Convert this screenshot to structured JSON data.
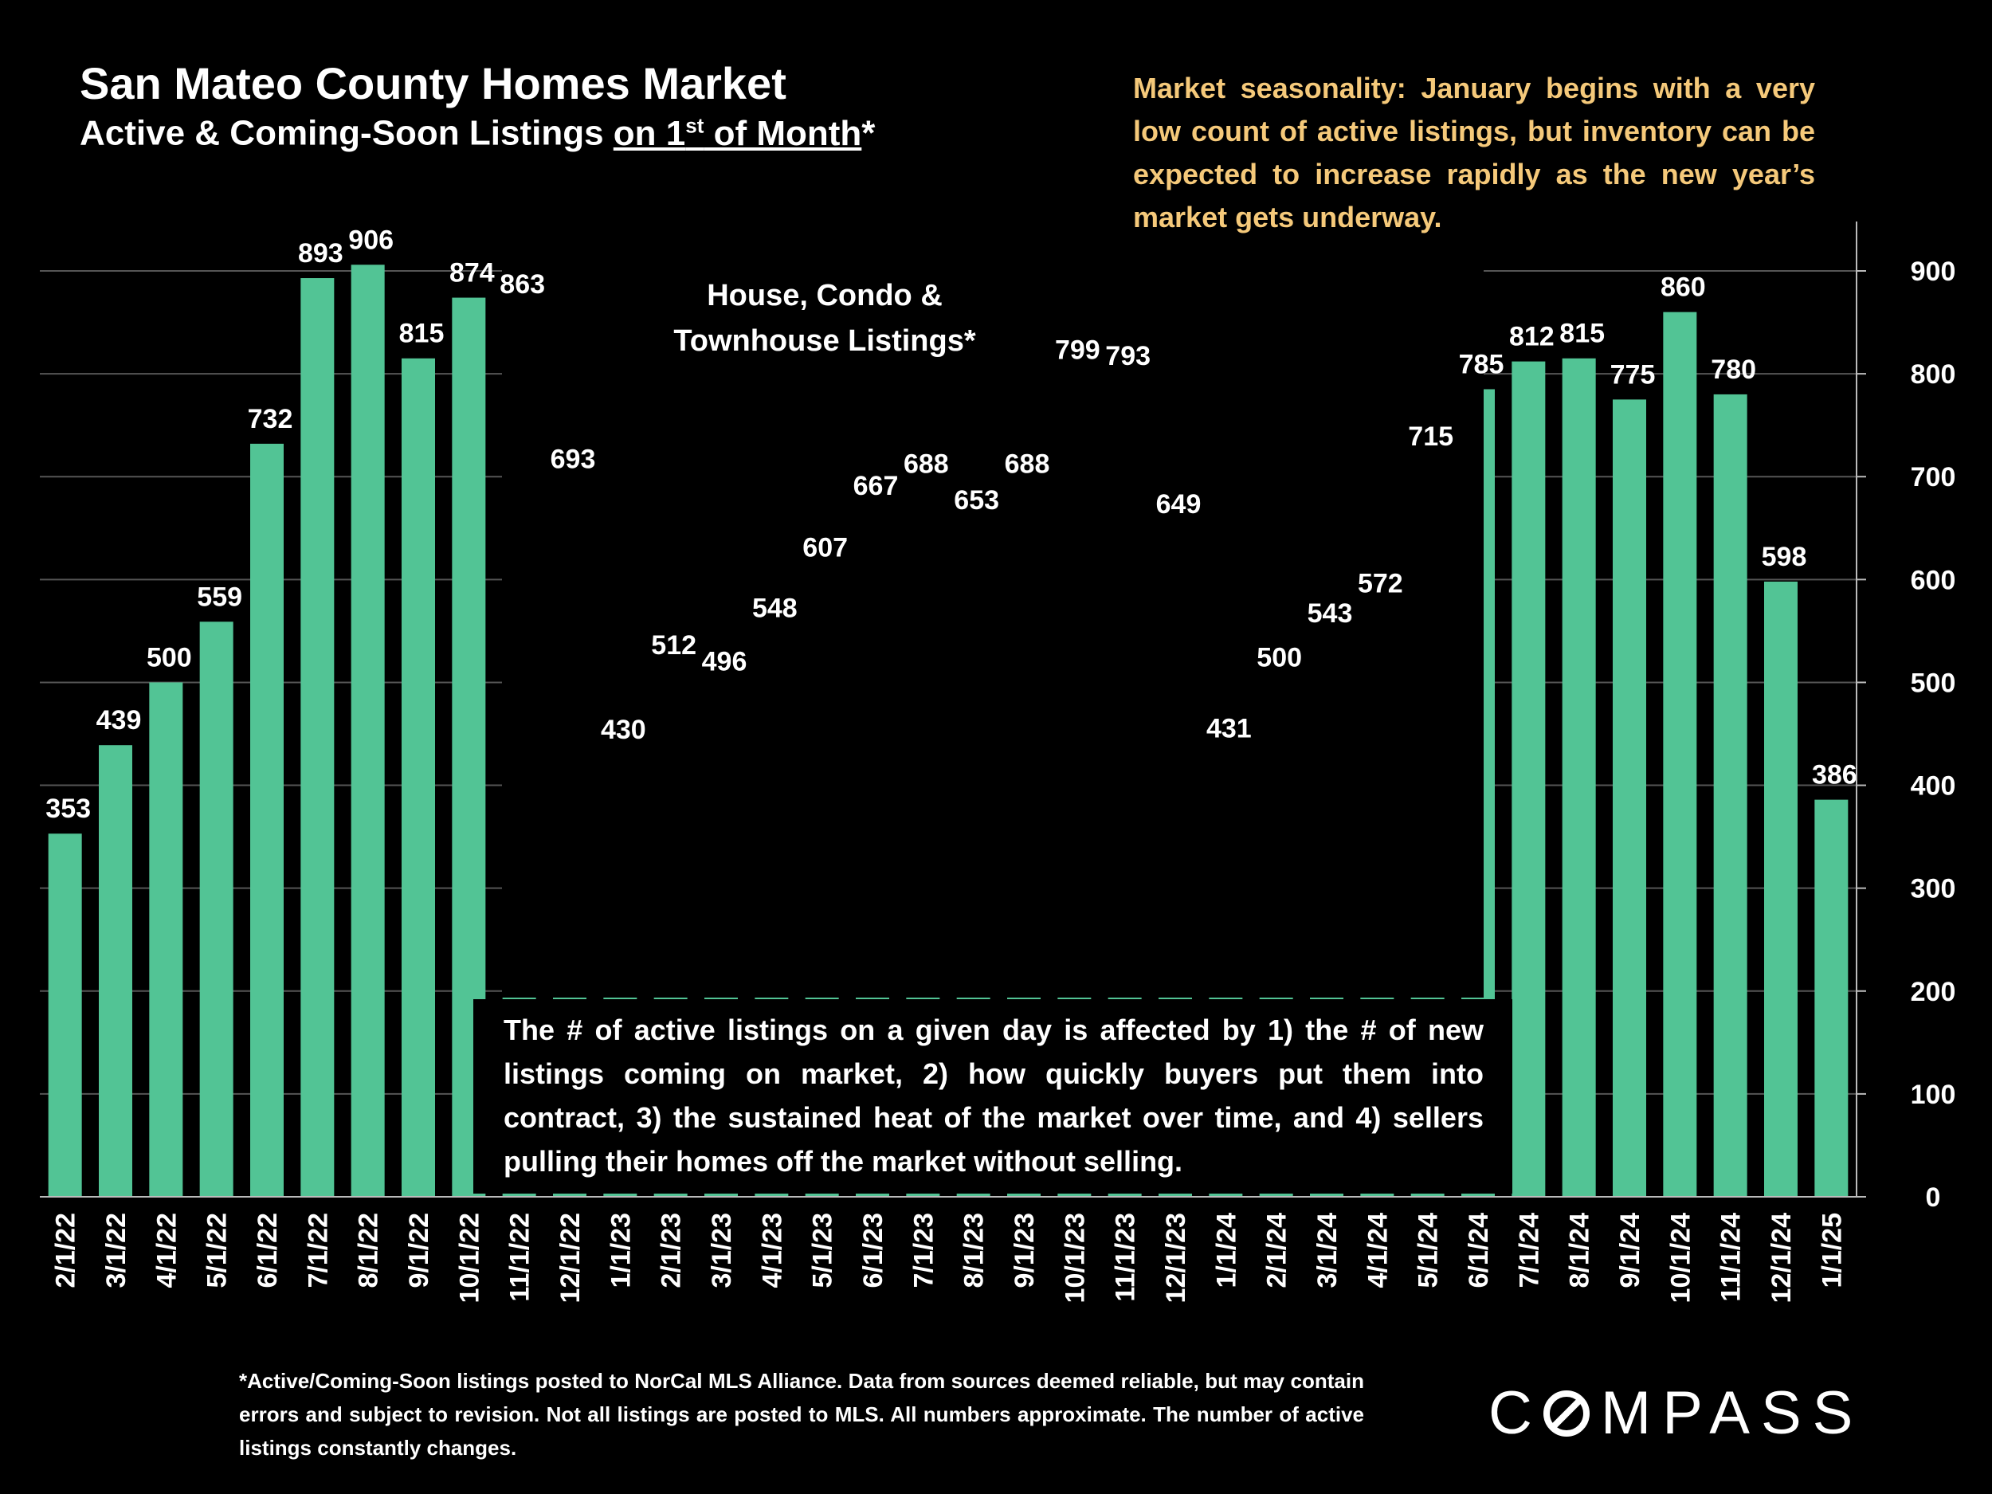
{
  "header": {
    "title": "San Mateo County Homes Market",
    "subtitle_pre": "Active & Coming-Soon Listings ",
    "subtitle_ul_1": "on 1",
    "subtitle_sup": "st",
    "subtitle_ul_2": " of Month",
    "subtitle_post": "*"
  },
  "seasonality_note": "Market seasonality:  January begins with a very low count of active listings, but inventory can be expected to increase rapidly as the new year’s market gets underway.",
  "inset_label_line1": "House, Condo &",
  "inset_label_line2": "Townhouse Listings*",
  "explanation": "The # of active listings on a given day is affected by 1) the # of new listings coming on market, 2) how quickly buyers put them into contract, 3) the sustained heat of the market over time, and 4) sellers pulling their homes off the market without selling.",
  "footnote": "*Active/Coming-Soon listings posted to NorCal MLS Alliance.  Data from sources deemed reliable, but may contain errors and subject to revision.  Not all listings are posted to MLS. All numbers approximate. The number of active listings constantly changes.",
  "logo_text": "COMPASS",
  "colors": {
    "bar": "#52c495",
    "season_text": "#f5c97a",
    "background": "#000000",
    "grid": "#555555"
  },
  "chart_data": {
    "type": "bar",
    "categories": [
      "2/1/22",
      "3/1/22",
      "4/1/22",
      "5/1/22",
      "6/1/22",
      "7/1/22",
      "8/1/22",
      "9/1/22",
      "10/1/22",
      "11/1/22",
      "12/1/22",
      "1/1/23",
      "2/1/23",
      "3/1/23",
      "4/1/23",
      "5/1/23",
      "6/1/23",
      "7/1/23",
      "8/1/23",
      "9/1/23",
      "10/1/23",
      "11/1/23",
      "12/1/23",
      "1/1/24",
      "2/1/24",
      "3/1/24",
      "4/1/24",
      "5/1/24",
      "6/1/24",
      "7/1/24",
      "8/1/24",
      "9/1/24",
      "10/1/24",
      "11/1/24",
      "12/1/24",
      "1/1/25"
    ],
    "values": [
      353,
      439,
      500,
      559,
      732,
      893,
      906,
      815,
      874,
      863,
      693,
      430,
      512,
      496,
      548,
      607,
      667,
      688,
      653,
      688,
      799,
      793,
      649,
      431,
      500,
      543,
      572,
      715,
      785,
      812,
      815,
      775,
      860,
      780,
      598,
      386
    ],
    "title": "San Mateo County Homes Market",
    "ylim": [
      0,
      900
    ],
    "yticks": [
      0,
      100,
      200,
      300,
      400,
      500,
      600,
      700,
      800,
      900
    ],
    "y_axis_side": "right",
    "grid": true,
    "data_labels": true
  }
}
